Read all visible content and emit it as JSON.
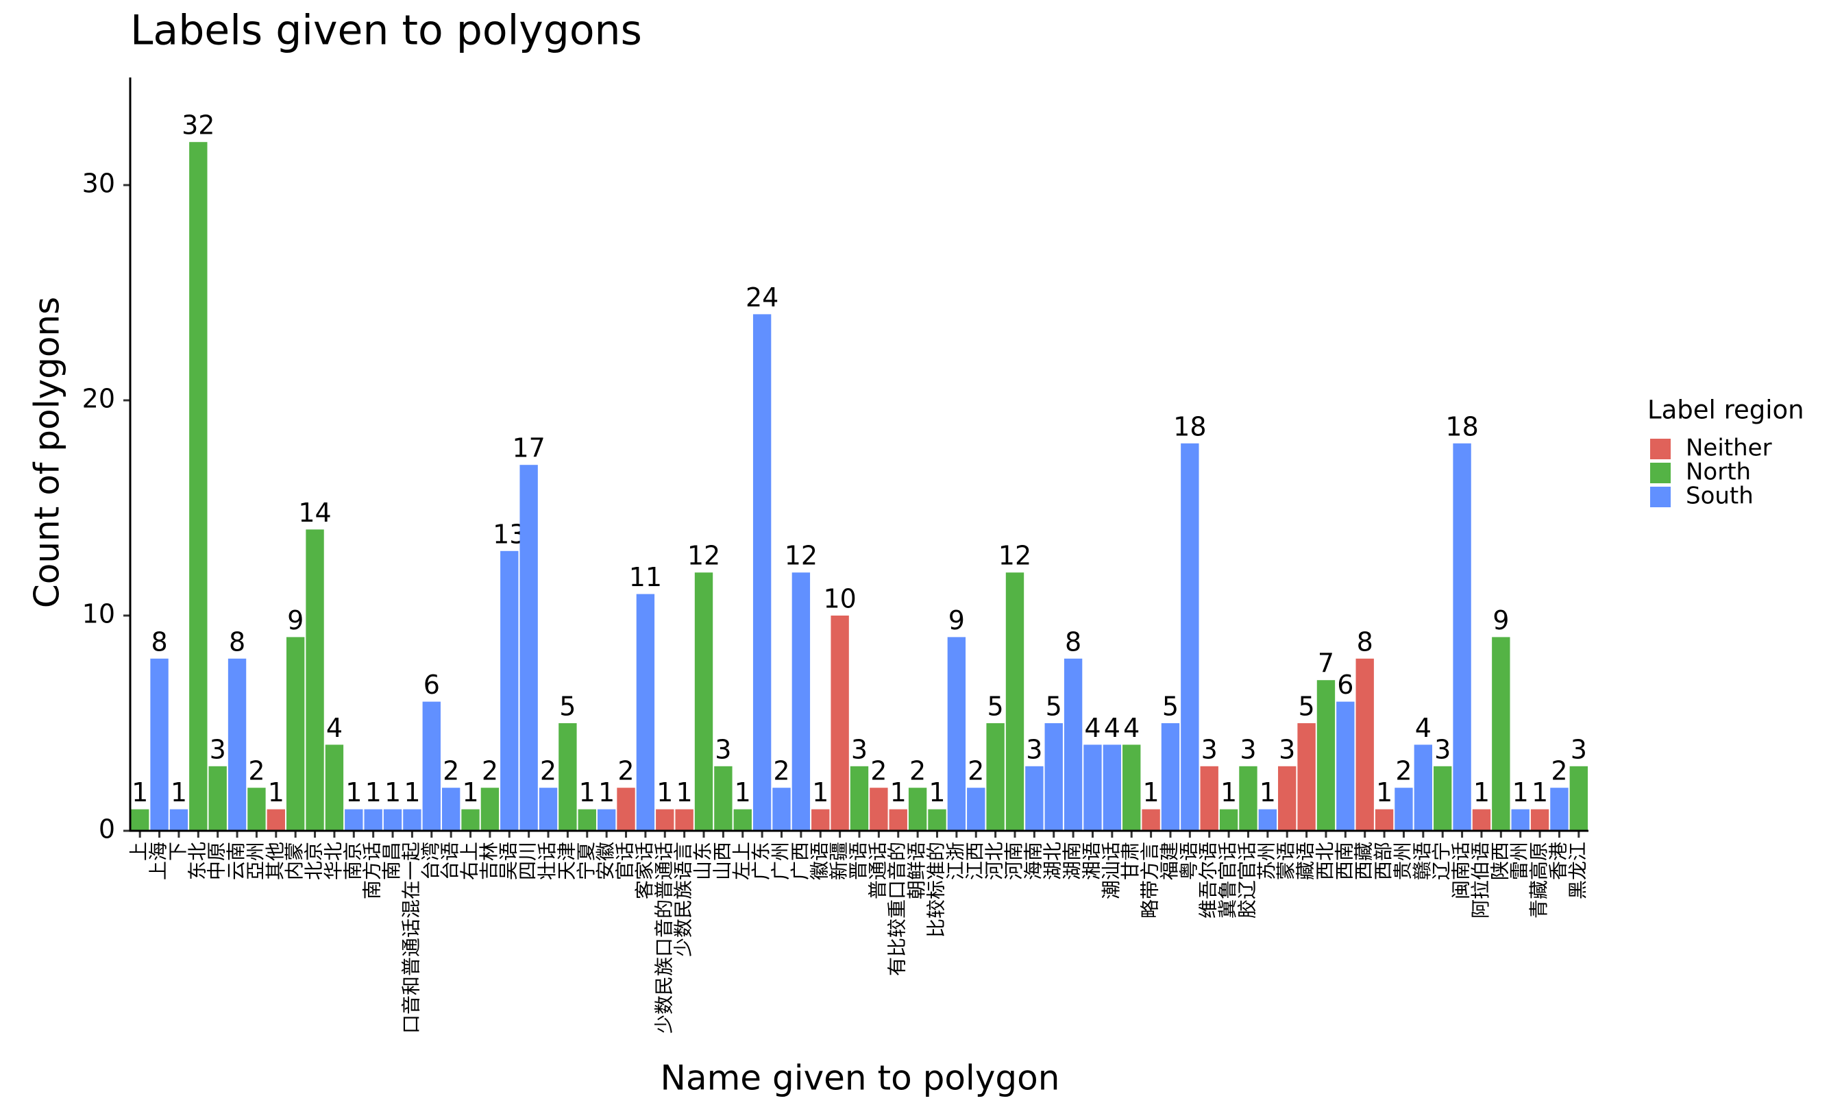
{
  "chart_data": {
    "type": "bar",
    "title": "Labels given to polygons",
    "x_label": "Name given to polygon",
    "y_label": "Count of polygons",
    "legend_title": "Label region",
    "categories": [
      "上",
      "上海",
      "下",
      "东北",
      "中原",
      "云南",
      "亞州",
      "其他",
      "内蒙",
      "北京",
      "华北",
      "南京",
      "南方话",
      "南昌",
      "口音和普通话混在一起",
      "台湾",
      "台语",
      "右上",
      "吉林",
      "吴语",
      "四川",
      "壮话",
      "天津",
      "宁夏",
      "安徽",
      "官话",
      "客家话",
      "少数民族口音的普通话",
      "少数民族语言",
      "山东",
      "山西",
      "左上",
      "广东",
      "广州",
      "广西",
      "徽语",
      "新疆",
      "晋语",
      "普通话",
      "有比较重口音的",
      "朝鲜语",
      "比较标准的",
      "江浙",
      "江西",
      "河北",
      "河南",
      "海南",
      "湖北",
      "湖南",
      "湘语",
      "潮汕话",
      "甘肃",
      "略带方言",
      "福建",
      "粤语",
      "维吾尔语",
      "冀鲁官话",
      "胶辽官话",
      "苏州",
      "蒙语",
      "藏语",
      "西北",
      "西南",
      "西藏",
      "西部",
      "贵州",
      "赣语",
      "辽宁",
      "闽南话",
      "阿拉伯语",
      "陕西",
      "雷州",
      "青藏高原",
      "香港",
      "黑龙江"
    ],
    "series": [
      {
        "name": "Neither",
        "color": "#e0625a",
        "values": [
          null,
          null,
          null,
          null,
          null,
          null,
          null,
          1,
          null,
          null,
          null,
          null,
          null,
          null,
          null,
          null,
          null,
          null,
          null,
          null,
          null,
          null,
          null,
          null,
          null,
          2,
          null,
          1,
          1,
          null,
          null,
          null,
          null,
          null,
          null,
          1,
          10,
          null,
          2,
          1,
          null,
          null,
          null,
          null,
          null,
          null,
          null,
          null,
          null,
          null,
          null,
          null,
          1,
          null,
          null,
          3,
          null,
          null,
          null,
          3,
          5,
          null,
          null,
          8,
          1,
          null,
          null,
          null,
          null,
          1,
          null,
          null,
          1,
          null,
          null
        ]
      },
      {
        "name": "North",
        "color": "#54b345",
        "values": [
          1,
          null,
          null,
          32,
          3,
          null,
          2,
          null,
          9,
          14,
          4,
          null,
          null,
          null,
          null,
          null,
          null,
          1,
          2,
          null,
          null,
          null,
          5,
          1,
          null,
          null,
          null,
          null,
          null,
          12,
          3,
          1,
          null,
          null,
          null,
          null,
          null,
          3,
          null,
          null,
          2,
          1,
          null,
          null,
          5,
          12,
          null,
          null,
          null,
          null,
          null,
          4,
          null,
          null,
          null,
          null,
          1,
          3,
          null,
          null,
          null,
          7,
          null,
          null,
          null,
          null,
          null,
          3,
          null,
          null,
          9,
          null,
          null,
          null,
          3
        ]
      },
      {
        "name": "South",
        "color": "#6190ff",
        "values": [
          null,
          8,
          1,
          null,
          null,
          8,
          null,
          null,
          null,
          null,
          null,
          1,
          1,
          1,
          1,
          6,
          2,
          null,
          null,
          13,
          17,
          2,
          null,
          null,
          1,
          null,
          11,
          null,
          null,
          null,
          null,
          null,
          24,
          2,
          12,
          null,
          null,
          null,
          null,
          null,
          null,
          null,
          9,
          2,
          null,
          null,
          3,
          5,
          8,
          4,
          4,
          null,
          null,
          5,
          18,
          null,
          null,
          null,
          1,
          null,
          null,
          null,
          6,
          null,
          null,
          2,
          4,
          null,
          18,
          null,
          null,
          1,
          null,
          2,
          null
        ]
      }
    ],
    "ylim": [
      0,
      35
    ],
    "yticks": [
      0,
      10,
      20,
      30
    ]
  }
}
